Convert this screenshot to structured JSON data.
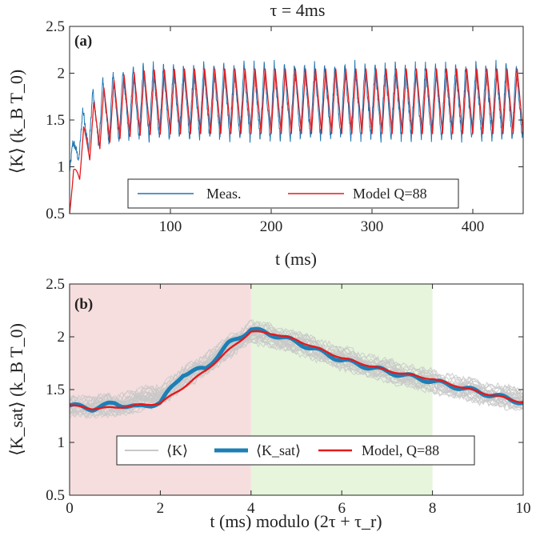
{
  "figure_title": "τ = 4ms",
  "colors": {
    "meas": "#1f77b4",
    "model": "#e41a1c",
    "traces": "#c8c8c8",
    "ksat": "#1c7fb6",
    "shade_red": "#f6dede",
    "shade_green": "#e6f5dc"
  },
  "chart_data": [
    {
      "type": "line",
      "panel_label": "(a)",
      "xlabel": "t (ms)",
      "ylabel": "⟨K⟩ (k_B T_0)",
      "xlim": [
        0,
        450
      ],
      "ylim": [
        0.5,
        2.5
      ],
      "xticks": [
        "100",
        "200",
        "300",
        "400"
      ],
      "xtick_values": [
        100,
        200,
        300,
        400
      ],
      "yticks": [
        "0.5",
        "1",
        "1.5",
        "2",
        "2.5"
      ],
      "ytick_values": [
        0.5,
        1,
        1.5,
        2,
        2.5
      ],
      "period_ms": 10,
      "series": [
        {
          "name": "Meas.",
          "description": "sawtooth oscillation between ~1.3 and ~2.1",
          "settled_min": 1.3,
          "settled_max": 2.1,
          "start_value": 0.9
        },
        {
          "name": "Model Q=88",
          "description": "sawtooth oscillation between ~1.35 and ~2.05",
          "settled_min": 1.35,
          "settled_max": 2.05,
          "start_value": 0.5
        }
      ],
      "legend": [
        "Meas.",
        "Model Q=88"
      ],
      "legend_position": "bottom"
    },
    {
      "type": "line",
      "panel_label": "(b)",
      "xlabel": "t (ms) modulo (2τ + τ_r)",
      "ylabel": "⟨K_sat⟩ (k_B T_0)",
      "xlim": [
        0,
        10
      ],
      "ylim": [
        0.5,
        2.5
      ],
      "xticks": [
        "0",
        "2",
        "4",
        "6",
        "8",
        "10"
      ],
      "xtick_values": [
        0,
        2,
        4,
        6,
        8,
        10
      ],
      "yticks": [
        "0.5",
        "1",
        "1.5",
        "2",
        "2.5"
      ],
      "ytick_values": [
        0.5,
        1,
        1.5,
        2,
        2.5
      ],
      "shaded_regions": [
        {
          "from": 0,
          "to": 4,
          "color": "red"
        },
        {
          "from": 4,
          "to": 8,
          "color": "green"
        }
      ],
      "series": [
        {
          "name": "⟨K⟩",
          "x": [
            0,
            1,
            2,
            3,
            4,
            5,
            6,
            7,
            8,
            9,
            10
          ],
          "values": [
            1.35,
            1.35,
            1.45,
            1.75,
            2.05,
            1.95,
            1.8,
            1.68,
            1.58,
            1.48,
            1.4
          ]
        },
        {
          "name": "⟨K_sat⟩",
          "x": [
            0,
            0.5,
            1,
            1.5,
            2,
            2.5,
            3,
            3.5,
            4,
            4.5,
            5,
            6,
            7,
            8,
            9,
            10
          ],
          "values": [
            1.35,
            1.32,
            1.37,
            1.33,
            1.38,
            1.65,
            1.7,
            1.93,
            2.07,
            2.02,
            1.95,
            1.78,
            1.67,
            1.58,
            1.48,
            1.38
          ]
        },
        {
          "name": "Model, Q=88",
          "x": [
            0,
            0.5,
            1,
            1.5,
            2,
            2.5,
            3,
            3.5,
            4,
            4.5,
            5,
            6,
            7,
            8,
            9,
            10
          ],
          "values": [
            1.35,
            1.32,
            1.33,
            1.35,
            1.37,
            1.52,
            1.68,
            1.87,
            2.05,
            2.03,
            1.97,
            1.8,
            1.68,
            1.6,
            1.48,
            1.38
          ]
        }
      ],
      "legend": [
        "⟨K⟩",
        "⟨K_sat⟩",
        "Model, Q=88"
      ],
      "legend_position": "bottom"
    }
  ]
}
